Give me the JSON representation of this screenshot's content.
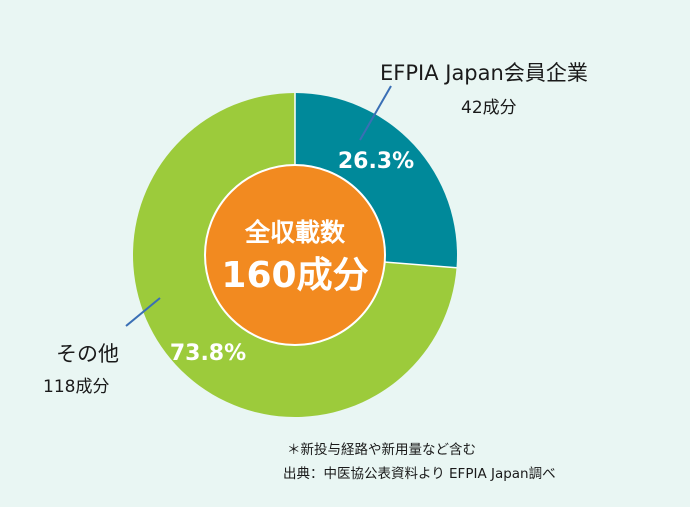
{
  "chart_data": {
    "type": "pie",
    "style": "donut",
    "center_title": "全収載数",
    "center_value": "160成分",
    "slices": [
      {
        "name": "EFPIA Japan会員企業",
        "count_label": "42成分",
        "value": 42,
        "percent": 26.3,
        "percent_label": "26.3%",
        "color": "#00899a"
      },
      {
        "name": "その他",
        "count_label": "118成分",
        "value": 118,
        "percent": 73.8,
        "percent_label": "73.8%",
        "color": "#9ccb3b"
      }
    ],
    "center_color": "#f28a20"
  },
  "notes": {
    "line1": "＊新投与経路や新用量など含む",
    "line2": "出典：中医協公表資料より EFPIA Japan調べ"
  }
}
